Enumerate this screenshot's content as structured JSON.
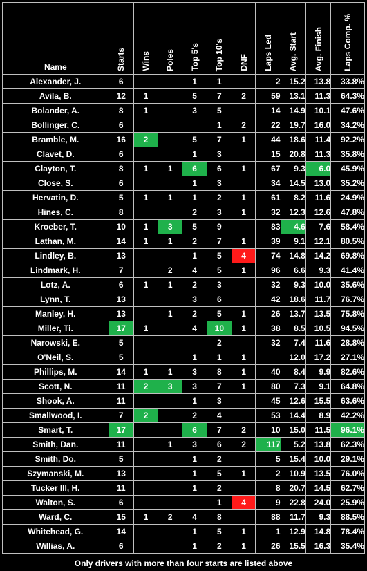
{
  "headers": {
    "name": "Name",
    "starts": "Starts",
    "wins": "Wins",
    "poles": "Poles",
    "top5": "Top 5's",
    "top10": "Top 10's",
    "dnf": "DNF",
    "laps_led": "Laps Led",
    "avg_start": "Avg. Start",
    "avg_finish": "Avg. Finish",
    "laps_comp": "Laps Comp. %"
  },
  "colors": {
    "green": "#1fb14b",
    "red": "#ff1a1a",
    "background": "#000000",
    "text": "#ffffff"
  },
  "rows": [
    {
      "name": "Alexander, J.",
      "starts": "6",
      "wins": "",
      "poles": "",
      "top5": "1",
      "top10": "1",
      "dnf": "",
      "laps_led": "2",
      "avg_start": "15.2",
      "avg_finish": "13.8",
      "laps_comp": "33.8%",
      "hl": {}
    },
    {
      "name": "Avila, B.",
      "starts": "12",
      "wins": "1",
      "poles": "",
      "top5": "5",
      "top10": "7",
      "dnf": "2",
      "laps_led": "59",
      "avg_start": "13.1",
      "avg_finish": "11.3",
      "laps_comp": "64.3%",
      "hl": {}
    },
    {
      "name": "Bolander, A.",
      "starts": "8",
      "wins": "1",
      "poles": "",
      "top5": "3",
      "top10": "5",
      "dnf": "",
      "laps_led": "14",
      "avg_start": "14.9",
      "avg_finish": "10.1",
      "laps_comp": "47.6%",
      "hl": {}
    },
    {
      "name": "Bollinger, C.",
      "starts": "6",
      "wins": "",
      "poles": "",
      "top5": "",
      "top10": "1",
      "dnf": "2",
      "laps_led": "22",
      "avg_start": "19.7",
      "avg_finish": "16.0",
      "laps_comp": "34.2%",
      "hl": {}
    },
    {
      "name": "Bramble, M.",
      "starts": "16",
      "wins": "2",
      "poles": "",
      "top5": "5",
      "top10": "7",
      "dnf": "1",
      "laps_led": "44",
      "avg_start": "18.6",
      "avg_finish": "11.4",
      "laps_comp": "92.2%",
      "hl": {
        "wins": "green"
      }
    },
    {
      "name": "Clavet, D.",
      "starts": "6",
      "wins": "",
      "poles": "",
      "top5": "1",
      "top10": "3",
      "dnf": "",
      "laps_led": "15",
      "avg_start": "20.8",
      "avg_finish": "11.3",
      "laps_comp": "35.8%",
      "hl": {}
    },
    {
      "name": "Clayton, T.",
      "starts": "8",
      "wins": "1",
      "poles": "1",
      "top5": "6",
      "top10": "6",
      "dnf": "1",
      "laps_led": "67",
      "avg_start": "9.3",
      "avg_finish": "6.0",
      "laps_comp": "45.9%",
      "hl": {
        "top5": "green",
        "avg_finish": "green"
      }
    },
    {
      "name": "Close, S.",
      "starts": "6",
      "wins": "",
      "poles": "",
      "top5": "1",
      "top10": "3",
      "dnf": "",
      "laps_led": "34",
      "avg_start": "14.5",
      "avg_finish": "13.0",
      "laps_comp": "35.2%",
      "hl": {}
    },
    {
      "name": "Hervatin, D.",
      "starts": "5",
      "wins": "1",
      "poles": "1",
      "top5": "1",
      "top10": "2",
      "dnf": "1",
      "laps_led": "61",
      "avg_start": "8.2",
      "avg_finish": "11.6",
      "laps_comp": "24.9%",
      "hl": {}
    },
    {
      "name": "Hines, C.",
      "starts": "8",
      "wins": "",
      "poles": "",
      "top5": "2",
      "top10": "3",
      "dnf": "1",
      "laps_led": "32",
      "avg_start": "12.3",
      "avg_finish": "12.6",
      "laps_comp": "47.8%",
      "hl": {}
    },
    {
      "name": "Kroeber, T.",
      "starts": "10",
      "wins": "1",
      "poles": "3",
      "top5": "5",
      "top10": "9",
      "dnf": "",
      "laps_led": "83",
      "avg_start": "4.6",
      "avg_finish": "7.6",
      "laps_comp": "58.4%",
      "hl": {
        "poles": "green",
        "avg_start": "green"
      }
    },
    {
      "name": "Lathan, M.",
      "starts": "14",
      "wins": "1",
      "poles": "1",
      "top5": "2",
      "top10": "7",
      "dnf": "1",
      "laps_led": "39",
      "avg_start": "9.1",
      "avg_finish": "12.1",
      "laps_comp": "80.5%",
      "hl": {}
    },
    {
      "name": "Lindley, B.",
      "starts": "13",
      "wins": "",
      "poles": "",
      "top5": "1",
      "top10": "5",
      "dnf": "4",
      "laps_led": "74",
      "avg_start": "14.8",
      "avg_finish": "14.2",
      "laps_comp": "69.8%",
      "hl": {
        "dnf": "red"
      }
    },
    {
      "name": "Lindmark, H.",
      "starts": "7",
      "wins": "",
      "poles": "2",
      "top5": "4",
      "top10": "5",
      "dnf": "1",
      "laps_led": "96",
      "avg_start": "6.6",
      "avg_finish": "9.3",
      "laps_comp": "41.4%",
      "hl": {}
    },
    {
      "name": "Lotz, A.",
      "starts": "6",
      "wins": "1",
      "poles": "1",
      "top5": "2",
      "top10": "3",
      "dnf": "",
      "laps_led": "32",
      "avg_start": "9.3",
      "avg_finish": "10.0",
      "laps_comp": "35.6%",
      "hl": {}
    },
    {
      "name": "Lynn, T.",
      "starts": "13",
      "wins": "",
      "poles": "",
      "top5": "3",
      "top10": "6",
      "dnf": "",
      "laps_led": "42",
      "avg_start": "18.6",
      "avg_finish": "11.7",
      "laps_comp": "76.7%",
      "hl": {}
    },
    {
      "name": "Manley, H.",
      "starts": "13",
      "wins": "",
      "poles": "1",
      "top5": "2",
      "top10": "5",
      "dnf": "1",
      "laps_led": "26",
      "avg_start": "13.7",
      "avg_finish": "13.5",
      "laps_comp": "75.8%",
      "hl": {}
    },
    {
      "name": "Miller, Ti.",
      "starts": "17",
      "wins": "1",
      "poles": "",
      "top5": "4",
      "top10": "10",
      "dnf": "1",
      "laps_led": "38",
      "avg_start": "8.5",
      "avg_finish": "10.5",
      "laps_comp": "94.5%",
      "hl": {
        "starts": "green",
        "top10": "green"
      }
    },
    {
      "name": "Narowski, E.",
      "starts": "5",
      "wins": "",
      "poles": "",
      "top5": "",
      "top10": "2",
      "dnf": "",
      "laps_led": "32",
      "avg_start": "7.4",
      "avg_finish": "11.6",
      "laps_comp": "28.8%",
      "hl": {}
    },
    {
      "name": "O'Neil, S.",
      "starts": "5",
      "wins": "",
      "poles": "",
      "top5": "1",
      "top10": "1",
      "dnf": "1",
      "laps_led": "",
      "avg_start": "12.0",
      "avg_finish": "17.2",
      "laps_comp": "27.1%",
      "hl": {}
    },
    {
      "name": "Phillips, M.",
      "starts": "14",
      "wins": "1",
      "poles": "1",
      "top5": "3",
      "top10": "8",
      "dnf": "1",
      "laps_led": "40",
      "avg_start": "8.4",
      "avg_finish": "9.9",
      "laps_comp": "82.6%",
      "hl": {}
    },
    {
      "name": "Scott, N.",
      "starts": "11",
      "wins": "2",
      "poles": "3",
      "top5": "3",
      "top10": "7",
      "dnf": "1",
      "laps_led": "80",
      "avg_start": "7.3",
      "avg_finish": "9.1",
      "laps_comp": "64.8%",
      "hl": {
        "wins": "green",
        "poles": "green"
      }
    },
    {
      "name": "Shook, A.",
      "starts": "11",
      "wins": "",
      "poles": "",
      "top5": "1",
      "top10": "3",
      "dnf": "",
      "laps_led": "45",
      "avg_start": "12.6",
      "avg_finish": "15.5",
      "laps_comp": "63.6%",
      "hl": {}
    },
    {
      "name": "Smallwood, I.",
      "starts": "7",
      "wins": "2",
      "poles": "",
      "top5": "2",
      "top10": "4",
      "dnf": "",
      "laps_led": "53",
      "avg_start": "14.4",
      "avg_finish": "8.9",
      "laps_comp": "42.2%",
      "hl": {
        "wins": "green"
      }
    },
    {
      "name": "Smart, T.",
      "starts": "17",
      "wins": "",
      "poles": "",
      "top5": "6",
      "top10": "7",
      "dnf": "2",
      "laps_led": "10",
      "avg_start": "15.0",
      "avg_finish": "11.5",
      "laps_comp": "96.1%",
      "hl": {
        "starts": "green",
        "top5": "green",
        "laps_comp": "green"
      }
    },
    {
      "name": "Smith, Dan.",
      "starts": "11",
      "wins": "",
      "poles": "1",
      "top5": "3",
      "top10": "6",
      "dnf": "2",
      "laps_led": "117",
      "avg_start": "5.2",
      "avg_finish": "13.8",
      "laps_comp": "62.3%",
      "hl": {
        "laps_led": "green"
      }
    },
    {
      "name": "Smith, Do.",
      "starts": "5",
      "wins": "",
      "poles": "",
      "top5": "1",
      "top10": "2",
      "dnf": "",
      "laps_led": "5",
      "avg_start": "15.4",
      "avg_finish": "10.0",
      "laps_comp": "29.1%",
      "hl": {}
    },
    {
      "name": "Szymanski, M.",
      "starts": "13",
      "wins": "",
      "poles": "",
      "top5": "1",
      "top10": "5",
      "dnf": "1",
      "laps_led": "2",
      "avg_start": "10.9",
      "avg_finish": "13.5",
      "laps_comp": "76.0%",
      "hl": {}
    },
    {
      "name": "Tucker III, H.",
      "starts": "11",
      "wins": "",
      "poles": "",
      "top5": "1",
      "top10": "2",
      "dnf": "",
      "laps_led": "8",
      "avg_start": "20.7",
      "avg_finish": "14.5",
      "laps_comp": "62.7%",
      "hl": {}
    },
    {
      "name": "Walton, S.",
      "starts": "6",
      "wins": "",
      "poles": "",
      "top5": "",
      "top10": "1",
      "dnf": "4",
      "laps_led": "9",
      "avg_start": "22.8",
      "avg_finish": "24.0",
      "laps_comp": "25.9%",
      "hl": {
        "dnf": "red"
      }
    },
    {
      "name": "Ward, C.",
      "starts": "15",
      "wins": "1",
      "poles": "2",
      "top5": "4",
      "top10": "8",
      "dnf": "",
      "laps_led": "88",
      "avg_start": "11.7",
      "avg_finish": "9.3",
      "laps_comp": "88.5%",
      "hl": {}
    },
    {
      "name": "Whitehead, G.",
      "starts": "14",
      "wins": "",
      "poles": "",
      "top5": "1",
      "top10": "5",
      "dnf": "1",
      "laps_led": "1",
      "avg_start": "12.9",
      "avg_finish": "14.8",
      "laps_comp": "78.4%",
      "hl": {}
    },
    {
      "name": "Willias, A.",
      "starts": "6",
      "wins": "",
      "poles": "",
      "top5": "1",
      "top10": "2",
      "dnf": "1",
      "laps_led": "26",
      "avg_start": "15.5",
      "avg_finish": "16.3",
      "laps_comp": "35.4%",
      "hl": {}
    }
  ],
  "footnote": "Only drivers with more than four starts are listed above"
}
